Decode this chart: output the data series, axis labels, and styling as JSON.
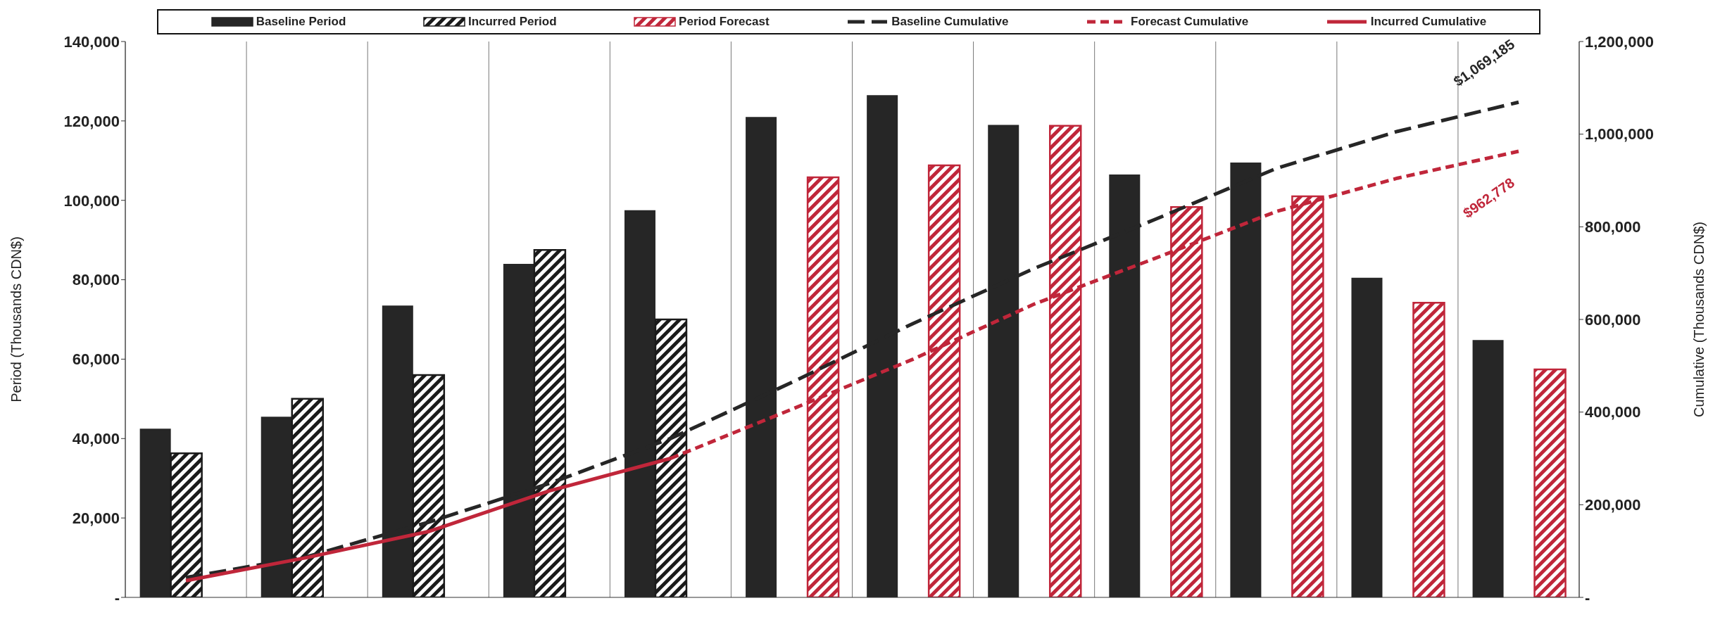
{
  "chart_data": {
    "type": "bar",
    "ylabel": "Period (Thousands CDN$)",
    "y2label": "Cumulative (Thousands CDN$)",
    "categories": [
      null,
      null,
      null,
      null,
      null,
      null,
      null,
      null,
      null,
      null,
      null,
      null
    ],
    "series": [
      {
        "name": "Baseline Period",
        "color": "#262626",
        "values": [
          42500,
          45500,
          73500,
          84000,
          97500,
          121000,
          126500,
          119000,
          106500,
          109500,
          80500,
          64800
        ]
      },
      {
        "name": "Incurred Period",
        "color": "#1a1a1a",
        "values": [
          36300,
          50000,
          56000,
          87500,
          70000,
          null,
          null,
          null,
          null,
          null,
          null,
          null
        ]
      },
      {
        "name": "Period Forecast",
        "color": "#c0263a",
        "values": [
          null,
          null,
          null,
          null,
          null,
          105800,
          108800,
          118800,
          98300,
          101000,
          74200,
          57400
        ]
      },
      {
        "name": "Baseline Cumulative",
        "type": "line",
        "axis": "y2",
        "color": "#262626",
        "line_style": "dashed",
        "values": [
          43000,
          88000,
          162000,
          246000,
          343000,
          464000,
          591000,
          710000,
          816000,
          926000,
          1006000,
          1069000
        ]
      },
      {
        "name": "Forecast Cumulative",
        "type": "line",
        "axis": "y2",
        "color": "#c0263a",
        "line_style": "dotted",
        "values": [
          null,
          null,
          null,
          null,
          300000,
          406000,
          514000,
          633000,
          732000,
          833000,
          905000,
          963000
        ]
      },
      {
        "name": "Incurred Cumulative",
        "type": "line",
        "axis": "y2",
        "color": "#c0263a",
        "line_style": "solid",
        "values": [
          36000,
          86000,
          142000,
          230000,
          300000,
          null,
          null,
          null,
          null,
          null,
          null,
          null
        ]
      }
    ],
    "annotations": [
      "$1,069,185",
      "$962,778"
    ],
    "ylim": [
      0,
      140000
    ],
    "yticks": [
      {
        "value": 0,
        "label": "-"
      },
      {
        "value": 20000,
        "label": "20,000"
      },
      {
        "value": 40000,
        "label": "40,000"
      },
      {
        "value": 60000,
        "label": "60,000"
      },
      {
        "value": 80000,
        "label": "80,000"
      },
      {
        "value": 100000,
        "label": "100,000"
      },
      {
        "value": 120000,
        "label": "120,000"
      },
      {
        "value": 140000,
        "label": "140,000"
      }
    ],
    "y2lim": [
      0,
      1200000
    ],
    "y2ticks": [
      {
        "value": 0,
        "label": "-"
      },
      {
        "value": 200000,
        "label": "200,000"
      },
      {
        "value": 400000,
        "label": "400,000"
      },
      {
        "value": 600000,
        "label": "600,000"
      },
      {
        "value": 800000,
        "label": "800,000"
      },
      {
        "value": 1000000,
        "label": "1,000,000"
      },
      {
        "value": 1200000,
        "label": "1,200,000"
      }
    ],
    "grid": "x",
    "legend": "top",
    "marker": "none"
  }
}
